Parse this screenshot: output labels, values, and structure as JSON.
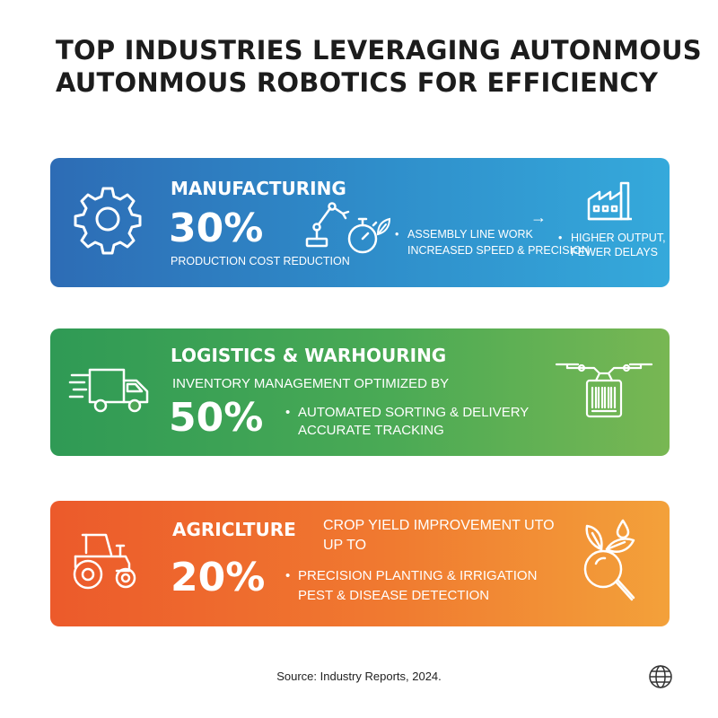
{
  "title": {
    "line1": "TOP INDUSTRIES LEVERAGING AUTONMOUS",
    "line2": "AUTONMOUS ROBOTICS FOR EFFICIENCY"
  },
  "manufacturing": {
    "name": "MANUFACTURING",
    "value": "30%",
    "caption": "PRODUCTION COST REDUCTION",
    "bullet1": "ASSEMBLY LINE WORK",
    "bullet2": "INCREASED SPEED & PRECISION",
    "arrow": "→",
    "result1": "HIGHER OUTPUT,",
    "result2": "FEWER DELAYS",
    "color": "#2f8fcb",
    "icons": [
      "gear-icon",
      "robot-arm-icon",
      "stopwatch-icon",
      "leaf-icon",
      "factory-icon"
    ]
  },
  "logistics": {
    "name": "LOGISTICS & WARHOURING",
    "subtitle": "INVENTORY MANAGEMENT OPTIMIZED BY",
    "value": "50%",
    "bullet1": "AUTOMATED SORTING & DELIVERY",
    "bullet2": "ACCURATE TRACKING",
    "color": "#4aaa55",
    "icons": [
      "delivery-truck-icon",
      "drone-package-icon"
    ]
  },
  "agriculture": {
    "name": "AGRICLTURE",
    "subtitle1": "CROP YIELD IMPROVEMENT UTO",
    "subtitle2": "UP TO",
    "value": "20%",
    "bullet1": "PRECISION PLANTING & IRRIGATION",
    "bullet2": "PEST & DISEASE DETECTION",
    "color": "#f07a30",
    "icons": [
      "tractor-icon",
      "plant-magnifier-icon"
    ]
  },
  "footer": {
    "source": "Source: Industry Reports, 2024.",
    "icon": "globe-icon"
  }
}
